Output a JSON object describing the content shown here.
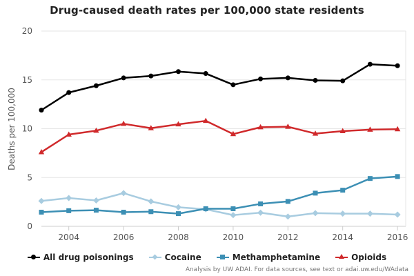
{
  "chart_data": {
    "type": "line",
    "title": "Drug-caused death rates per 100,000 state residents",
    "ylabel": "Deaths per 100,000",
    "xlabel": "",
    "x": [
      2003,
      2004,
      2005,
      2006,
      2007,
      2008,
      2009,
      2010,
      2011,
      2012,
      2013,
      2014,
      2015,
      2016
    ],
    "xticks": [
      2004,
      2006,
      2008,
      2010,
      2012,
      2014,
      2016
    ],
    "yticks": [
      0,
      5,
      10,
      15,
      20
    ],
    "xlim": [
      2003,
      2016.3
    ],
    "ylim": [
      0,
      20
    ],
    "grid": "horizontal",
    "legend_position": "bottom",
    "series": [
      {
        "name": "All drug poisonings",
        "color": "#000000",
        "marker": "circle",
        "values": [
          11.9,
          13.7,
          14.4,
          15.2,
          15.4,
          15.85,
          15.65,
          14.5,
          15.1,
          15.2,
          14.95,
          14.9,
          16.6,
          16.45
        ]
      },
      {
        "name": "Cocaine",
        "color": "#a8cce0",
        "marker": "diamond",
        "values": [
          2.6,
          2.9,
          2.65,
          3.4,
          2.55,
          1.95,
          1.75,
          1.15,
          1.4,
          1.0,
          1.35,
          1.3,
          1.3,
          1.2
        ]
      },
      {
        "name": "Methamphetamine",
        "color": "#3c8fb4",
        "marker": "square",
        "values": [
          1.45,
          1.6,
          1.65,
          1.45,
          1.5,
          1.3,
          1.8,
          1.8,
          2.3,
          2.55,
          3.4,
          3.7,
          4.9,
          5.1
        ]
      },
      {
        "name": "Opioids",
        "color": "#d0292b",
        "marker": "triangle",
        "values": [
          7.6,
          9.4,
          9.8,
          10.5,
          10.05,
          10.45,
          10.8,
          9.45,
          10.15,
          10.2,
          9.5,
          9.75,
          9.9,
          9.95
        ]
      }
    ]
  },
  "credit": "Analysis by UW ADAI. For data sources, see text or adai.uw.edu/WAdata"
}
